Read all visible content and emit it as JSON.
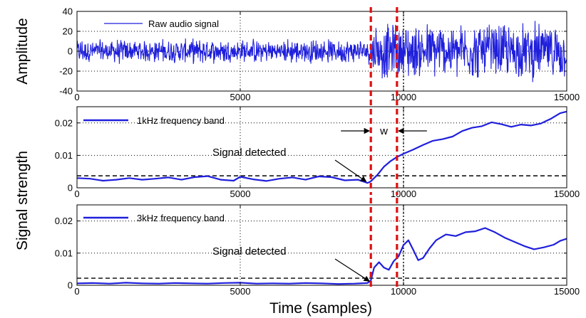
{
  "chart_data": [
    {
      "type": "line",
      "ylabel": "Amplitude",
      "xlim": [
        0,
        15000
      ],
      "ylim": [
        -40,
        40
      ],
      "xticks": [
        0,
        5000,
        10000,
        15000
      ],
      "yticks": [
        -40,
        -20,
        0,
        20,
        40
      ],
      "grid": "dotted",
      "legend": "top-left",
      "series": [
        {
          "name": "Raw audio signal",
          "color": "#1f1fdc",
          "segments": [
            {
              "x_start": 0,
              "x_end": 9000,
              "amplitude_range": [
                -15,
                15
              ]
            },
            {
              "x_start": 9000,
              "x_end": 15000,
              "amplitude_range": [
                -35,
                35
              ]
            }
          ]
        }
      ],
      "hlines": [],
      "red_dashed_x": [
        9000,
        9800
      ],
      "black_dotted_x": [
        10000
      ]
    },
    {
      "type": "line",
      "xlim": [
        0,
        15000
      ],
      "ylim": [
        0,
        0.025
      ],
      "xticks": [
        0,
        5000,
        10000,
        15000
      ],
      "yticks": [
        0,
        0.01,
        0.02
      ],
      "grid": "dotted",
      "legend": "top-left",
      "series": [
        {
          "name": "1kHz frequency band",
          "color": "#1f1fdc",
          "x": [
            0,
            400,
            800,
            1200,
            1600,
            2000,
            2400,
            2800,
            3200,
            3600,
            4000,
            4400,
            4800,
            5000,
            5400,
            5800,
            6200,
            6600,
            7000,
            7400,
            7800,
            8200,
            8600,
            8900,
            9000,
            9200,
            9400,
            9600,
            9800,
            10000,
            10300,
            10600,
            10900,
            11200,
            11500,
            11800,
            12100,
            12400,
            12700,
            13000,
            13300,
            13600,
            13900,
            14200,
            14500,
            14800,
            15000
          ],
          "y": [
            0.003,
            0.0028,
            0.0022,
            0.0025,
            0.003,
            0.0025,
            0.0028,
            0.0032,
            0.0025,
            0.0033,
            0.0036,
            0.0025,
            0.0022,
            0.0034,
            0.0026,
            0.0021,
            0.0028,
            0.0032,
            0.0025,
            0.0035,
            0.0033,
            0.0023,
            0.0025,
            0.0015,
            0.002,
            0.004,
            0.0065,
            0.0082,
            0.0095,
            0.0105,
            0.0118,
            0.0132,
            0.0145,
            0.015,
            0.0158,
            0.0175,
            0.0185,
            0.019,
            0.0202,
            0.0196,
            0.0188,
            0.0195,
            0.0192,
            0.0198,
            0.0212,
            0.023,
            0.0235
          ]
        }
      ],
      "hlines": [
        0.0037
      ],
      "red_dashed_x": [
        9000,
        9800
      ],
      "black_dotted_x": [
        10000
      ],
      "annotations": [
        {
          "text": "Signal detected",
          "target": [
            8900,
            0.0015
          ]
        },
        {
          "text": "w"
        }
      ]
    },
    {
      "type": "line",
      "xlim": [
        0,
        15000
      ],
      "ylim": [
        0,
        0.025
      ],
      "xticks": [
        0,
        5000,
        10000,
        15000
      ],
      "yticks": [
        0,
        0.01,
        0.02
      ],
      "grid": "dotted",
      "legend": "top-left",
      "series": [
        {
          "name": "3kHz frequency band",
          "color": "#1f1fdc",
          "x": [
            0,
            500,
            1000,
            1500,
            2000,
            2500,
            3000,
            3500,
            4000,
            4500,
            5000,
            5500,
            6000,
            6500,
            7000,
            7500,
            8000,
            8500,
            8900,
            9000,
            9100,
            9250,
            9400,
            9550,
            9700,
            9850,
            10000,
            10150,
            10300,
            10450,
            10600,
            10800,
            11000,
            11300,
            11600,
            11900,
            12200,
            12500,
            12800,
            13100,
            13400,
            13700,
            14000,
            14300,
            14600,
            14800,
            15000
          ],
          "y": [
            0.0006,
            0.0007,
            0.0005,
            0.0008,
            0.0006,
            0.0005,
            0.0007,
            0.0006,
            0.0005,
            0.0007,
            0.0008,
            0.0005,
            0.0006,
            0.0005,
            0.0007,
            0.0006,
            0.0004,
            0.0005,
            0.0007,
            0.0015,
            0.0055,
            0.0072,
            0.0055,
            0.0048,
            0.0075,
            0.009,
            0.0125,
            0.014,
            0.011,
            0.0078,
            0.0085,
            0.0115,
            0.014,
            0.0158,
            0.0153,
            0.0165,
            0.0168,
            0.0178,
            0.0165,
            0.0148,
            0.0135,
            0.0122,
            0.0112,
            0.0118,
            0.0126,
            0.0138,
            0.0145
          ]
        }
      ],
      "hlines": [
        0.0022
      ],
      "red_dashed_x": [
        9000,
        9800
      ],
      "black_dotted_x": [
        10000
      ],
      "annotations": [
        {
          "text": "Signal detected",
          "target": [
            9000,
            0.0008
          ]
        }
      ]
    }
  ],
  "shared": {
    "ylabel_shared": "Signal strength",
    "xlabel": "Time (samples)"
  }
}
